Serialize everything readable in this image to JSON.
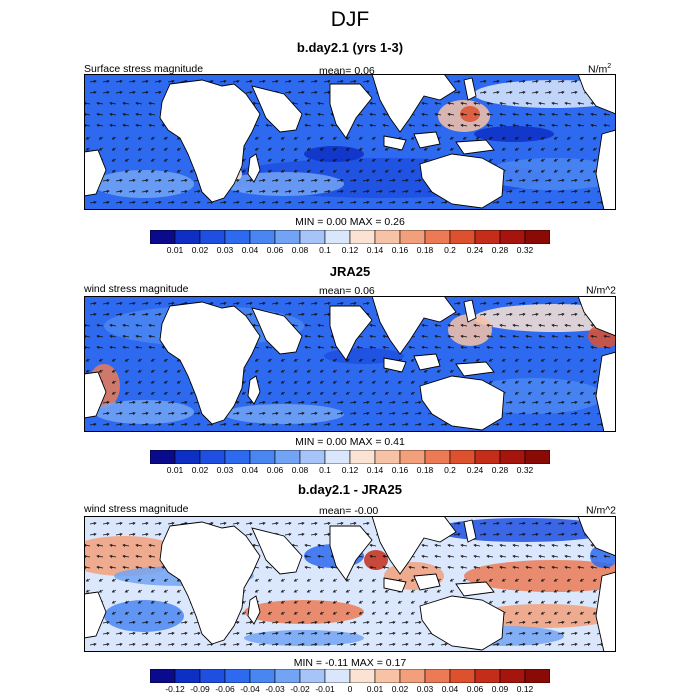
{
  "title": "DJF",
  "colorscale": {
    "abs": [
      "#0a0a8c",
      "#0d2fc4",
      "#1f4fe0",
      "#2e6af0",
      "#4a86f2",
      "#72a3f5",
      "#a6c4f7",
      "#dae6fb",
      "#fbe3d4",
      "#f7c2a6",
      "#f2a07c",
      "#eb7a55",
      "#dd512f",
      "#c32d1a",
      "#a5150d",
      "#8a0a05"
    ],
    "diff": [
      "#0a0a8c",
      "#0d2fc4",
      "#1f4fe0",
      "#2e6af0",
      "#4a86f2",
      "#72a3f5",
      "#a6c4f7",
      "#dae6fb",
      "#fbe3d4",
      "#f7c2a6",
      "#f2a07c",
      "#eb7a55",
      "#dd512f",
      "#c32d1a",
      "#a5150d",
      "#8a0a05"
    ]
  },
  "panels": [
    {
      "id": "model",
      "title": "b.day2.1 (yrs 1-3)",
      "left_label": "Surface stress magnitude",
      "mean_label": "mean=",
      "mean_value": "0.06",
      "units_main": "N/m",
      "units_sup": "2",
      "minmax": "MIN =   0.00 MAX =   0.26",
      "ticks": [
        "0.01",
        "0.02",
        "0.03",
        "0.04",
        "0.06",
        "0.08",
        "0.1",
        "0.12",
        "0.14",
        "0.16",
        "0.18",
        "0.2",
        "0.24",
        "0.28",
        "0.32"
      ]
    },
    {
      "id": "obs",
      "title": "JRA25",
      "left_label": "wind stress magnitude",
      "mean_label": "mean=",
      "mean_value": "0.06",
      "units_main": "N/m^2",
      "units_sup": "",
      "minmax": "MIN =   0.00 MAX =   0.41",
      "ticks": [
        "0.01",
        "0.02",
        "0.03",
        "0.04",
        "0.06",
        "0.08",
        "0.1",
        "0.12",
        "0.14",
        "0.16",
        "0.18",
        "0.2",
        "0.24",
        "0.28",
        "0.32"
      ]
    },
    {
      "id": "diff",
      "title": "b.day2.1 - JRA25",
      "left_label": "wind stress magnitude",
      "mean_label": "mean=",
      "mean_value": "-0.00",
      "units_main": "N/m^2",
      "units_sup": "",
      "minmax": "MIN =  -0.11 MAX =   0.17",
      "ticks": [
        "-0.12",
        "-0.09",
        "-0.06",
        "-0.04",
        "-0.03",
        "-0.02",
        "-0.01",
        "0",
        "0.01",
        "0.02",
        "0.03",
        "0.04",
        "0.06",
        "0.09",
        "0.12"
      ]
    }
  ]
}
